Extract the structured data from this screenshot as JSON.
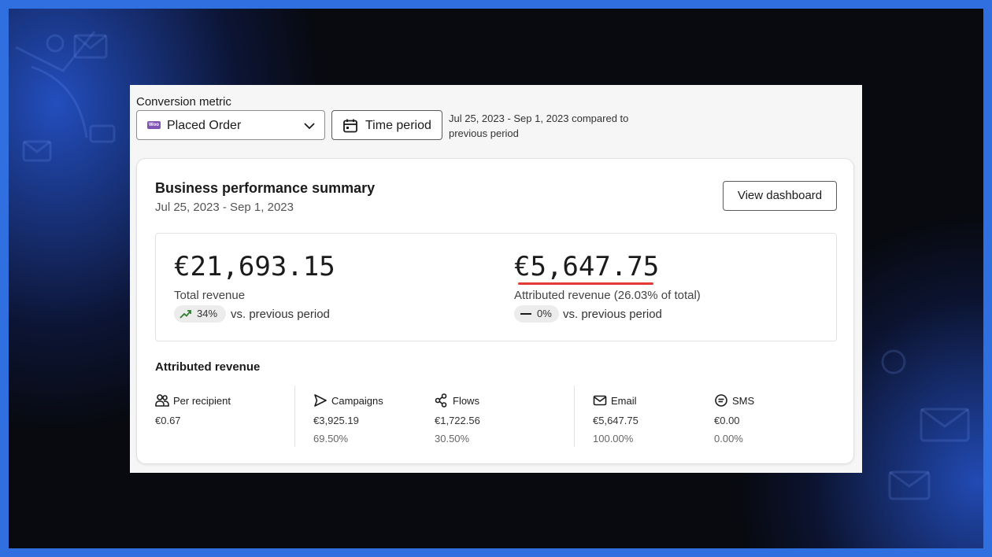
{
  "filters": {
    "conversion_metric_label": "Conversion metric",
    "selected_metric": "Placed Order",
    "metric_source_icon": "woo",
    "time_period_button": "Time period",
    "period_description": "Jul 25, 2023 - Sep 1, 2023 compared to previous period"
  },
  "summary": {
    "title": "Business performance summary",
    "date_range": "Jul 25, 2023 - Sep 1, 2023",
    "view_dashboard_button": "View dashboard",
    "total_revenue": {
      "value": "€21,693.15",
      "label": "Total revenue",
      "change": "34%",
      "change_icon": "trend-up-icon",
      "change_color": "#2e7d32",
      "comparison": "vs. previous period"
    },
    "attributed_revenue": {
      "value": "€5,647.75",
      "label": "Attributed revenue (26.03% of total)",
      "change": "0%",
      "change_icon": "dash-icon",
      "comparison": "vs. previous period",
      "highlight_color": "#e53935"
    }
  },
  "attributed": {
    "title": "Attributed revenue",
    "metrics": [
      {
        "icon": "users-icon",
        "label": "Per recipient",
        "value": "€0.67",
        "percent": ""
      },
      {
        "icon": "send-icon",
        "label": "Campaigns",
        "value": "€3,925.19",
        "percent": "69.50%"
      },
      {
        "icon": "flows-icon",
        "label": "Flows",
        "value": "€1,722.56",
        "percent": "30.50%"
      },
      {
        "icon": "mail-icon",
        "label": "Email",
        "value": "€5,647.75",
        "percent": "100.00%"
      },
      {
        "icon": "sms-icon",
        "label": "SMS",
        "value": "€0.00",
        "percent": "0.00%"
      }
    ]
  }
}
